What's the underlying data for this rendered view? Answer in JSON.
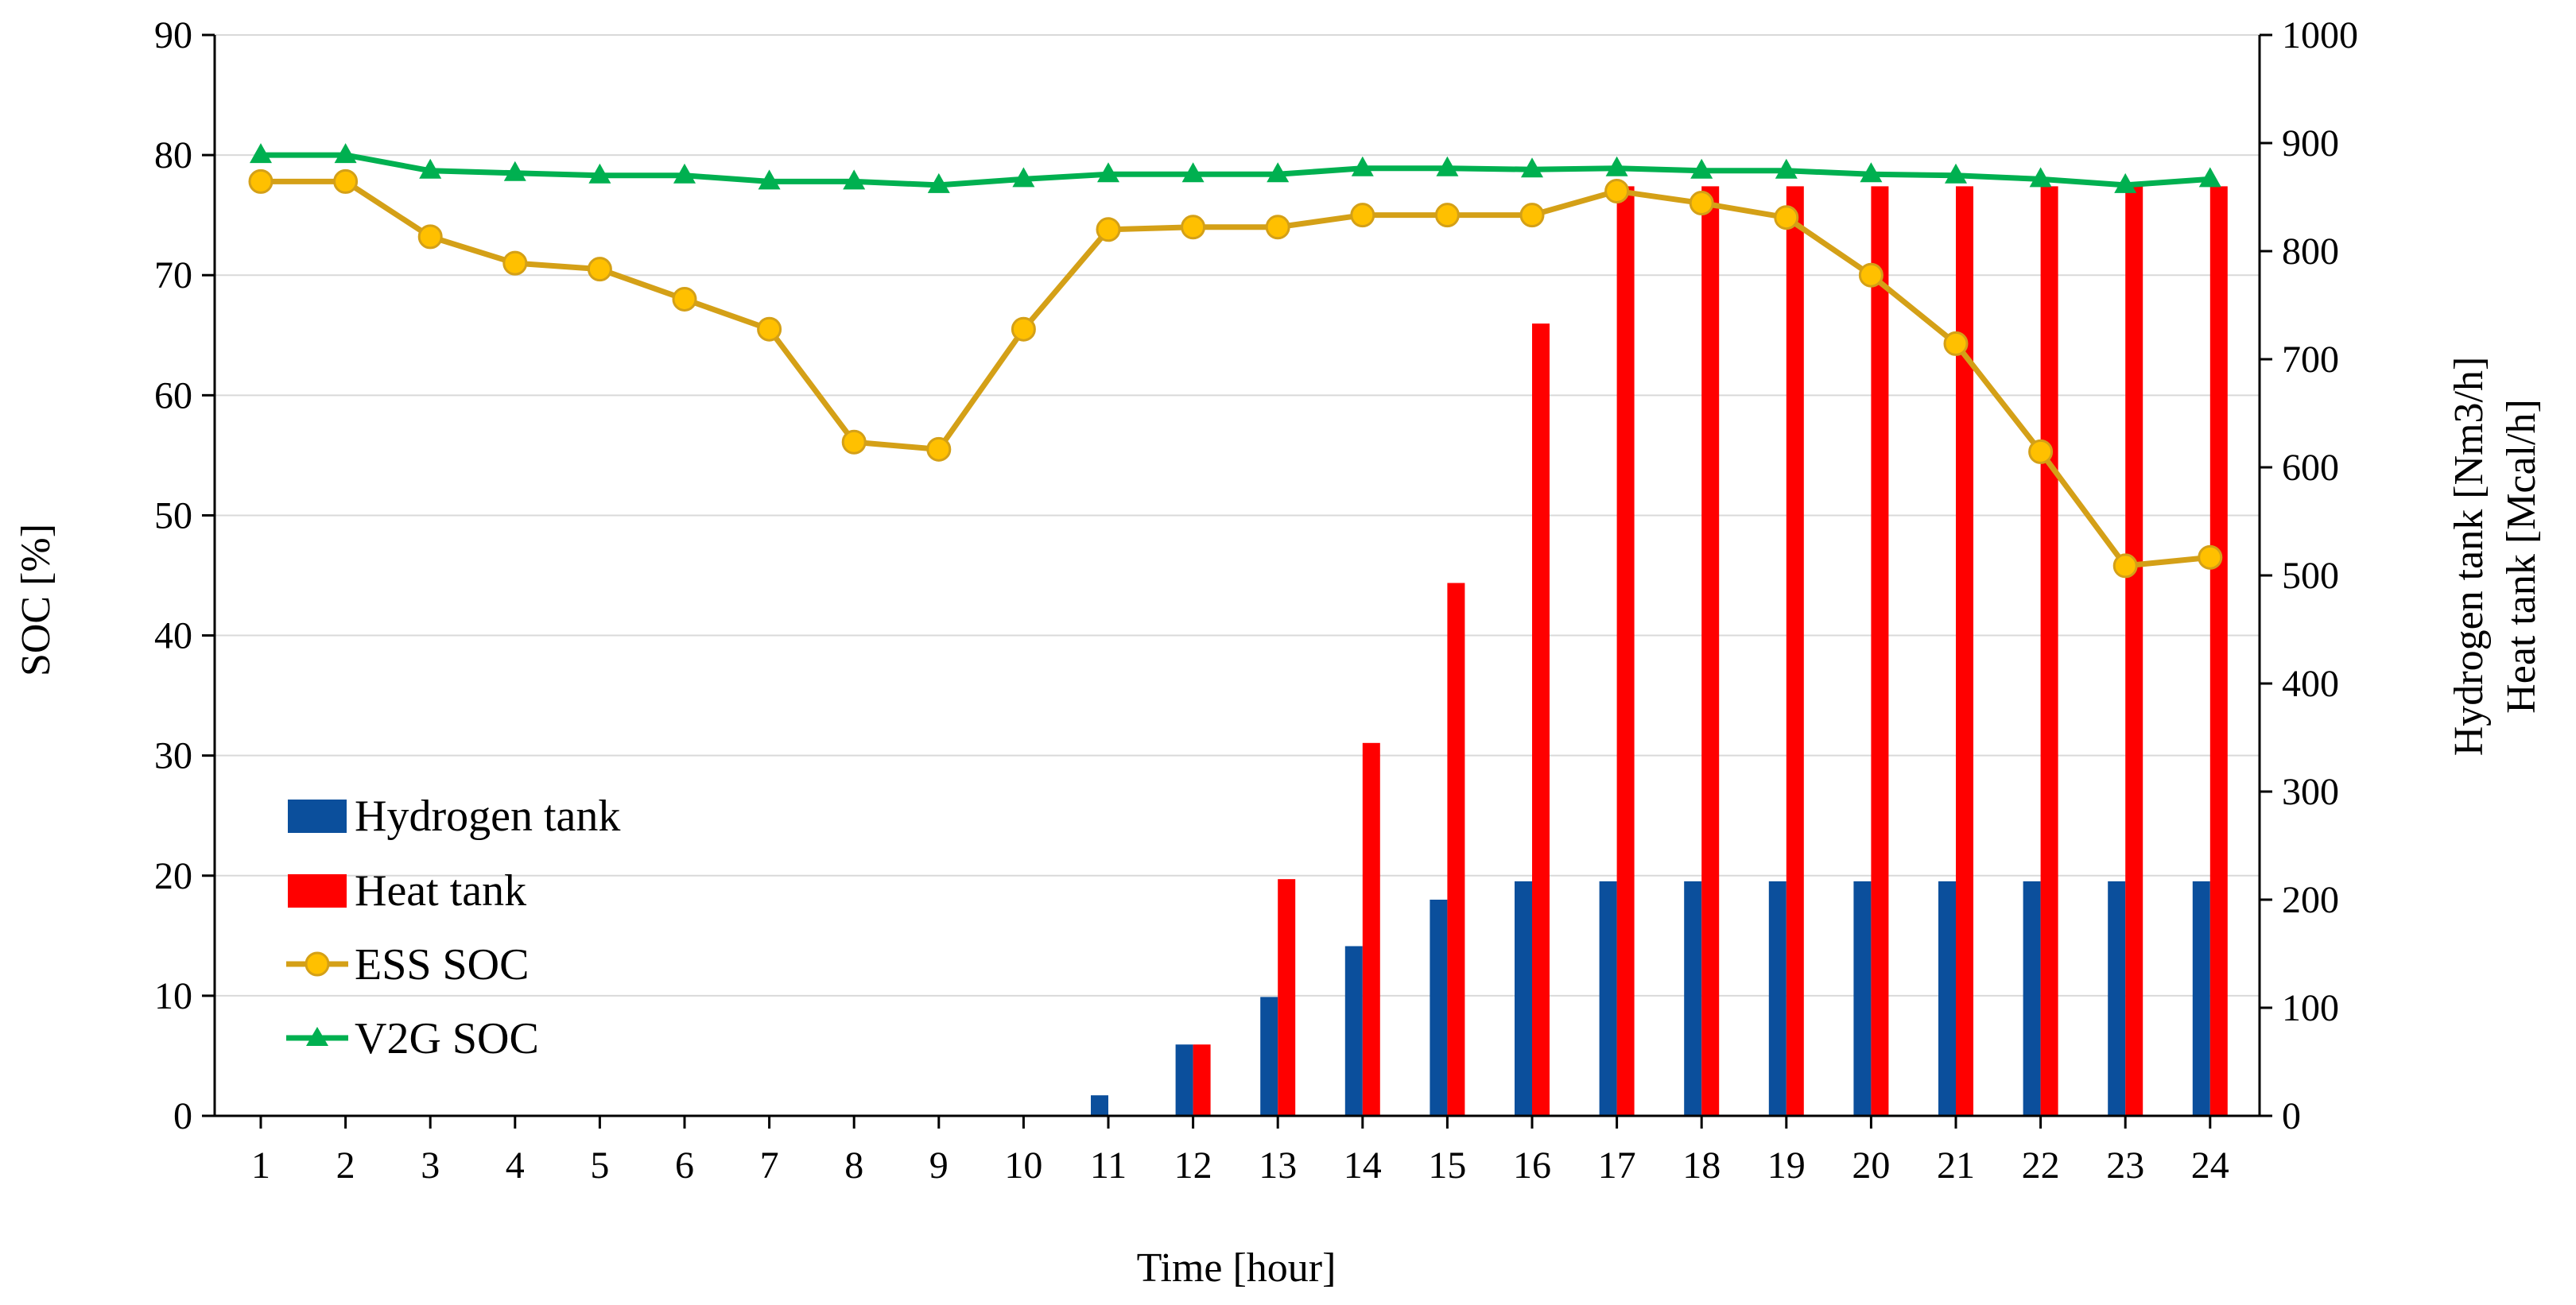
{
  "chart_data": {
    "type": "bar+line",
    "title": "",
    "xlabel": "Time [hour]",
    "ylabel_left": "SOC [%]",
    "ylabel_right": [
      "Hydrogen tank [Nm3/h]",
      "Heat tank [Mcal/h]"
    ],
    "ylim_left": [
      0,
      90
    ],
    "ylim_right": [
      0,
      1000
    ],
    "yticks_left": [
      "0",
      "10",
      "20",
      "30",
      "40",
      "50",
      "60",
      "70",
      "80",
      "90"
    ],
    "yticks_right": [
      "0",
      "100",
      "200",
      "300",
      "400",
      "500",
      "600",
      "700",
      "800",
      "900",
      "1000"
    ],
    "categories": [
      "1",
      "2",
      "3",
      "4",
      "5",
      "6",
      "7",
      "8",
      "9",
      "10",
      "11",
      "12",
      "13",
      "14",
      "15",
      "16",
      "17",
      "18",
      "19",
      "20",
      "21",
      "22",
      "23",
      "24"
    ],
    "grid": true,
    "legend_position": "lower-left",
    "bar_series": [
      {
        "name": "Hydrogen tank",
        "axis": "right",
        "color": "#0b4f9c",
        "values": [
          0,
          0,
          0,
          0,
          0,
          0,
          0,
          0,
          0,
          0,
          19,
          66,
          110,
          157,
          200,
          217,
          217,
          217,
          217,
          217,
          217,
          217,
          217,
          217
        ]
      },
      {
        "name": "Heat tank",
        "axis": "right",
        "color": "#ff0000",
        "values": [
          0,
          0,
          0,
          0,
          0,
          0,
          0,
          0,
          0,
          0,
          0,
          66,
          219,
          345,
          493,
          733,
          860,
          860,
          860,
          860,
          860,
          860,
          860,
          860
        ]
      }
    ],
    "line_series": [
      {
        "name": "ESS SOC",
        "axis": "left",
        "color": "#d4a017",
        "marker": "circle",
        "marker_fill": "#ffc000",
        "values": [
          77.8,
          77.8,
          73.2,
          71.0,
          70.5,
          68.0,
          65.5,
          56.1,
          55.5,
          65.5,
          73.8,
          74.0,
          74.0,
          75.0,
          75.0,
          75.0,
          77.0,
          76.0,
          74.8,
          70.0,
          64.3,
          55.3,
          45.8,
          46.5
        ]
      },
      {
        "name": "V2G SOC",
        "axis": "left",
        "color": "#00b050",
        "marker": "triangle",
        "values": [
          80.0,
          80.0,
          78.7,
          78.5,
          78.3,
          78.3,
          77.8,
          77.8,
          77.5,
          78.0,
          78.4,
          78.4,
          78.4,
          78.9,
          78.9,
          78.8,
          78.9,
          78.7,
          78.7,
          78.4,
          78.3,
          78.0,
          77.5,
          78.0
        ]
      }
    ]
  }
}
